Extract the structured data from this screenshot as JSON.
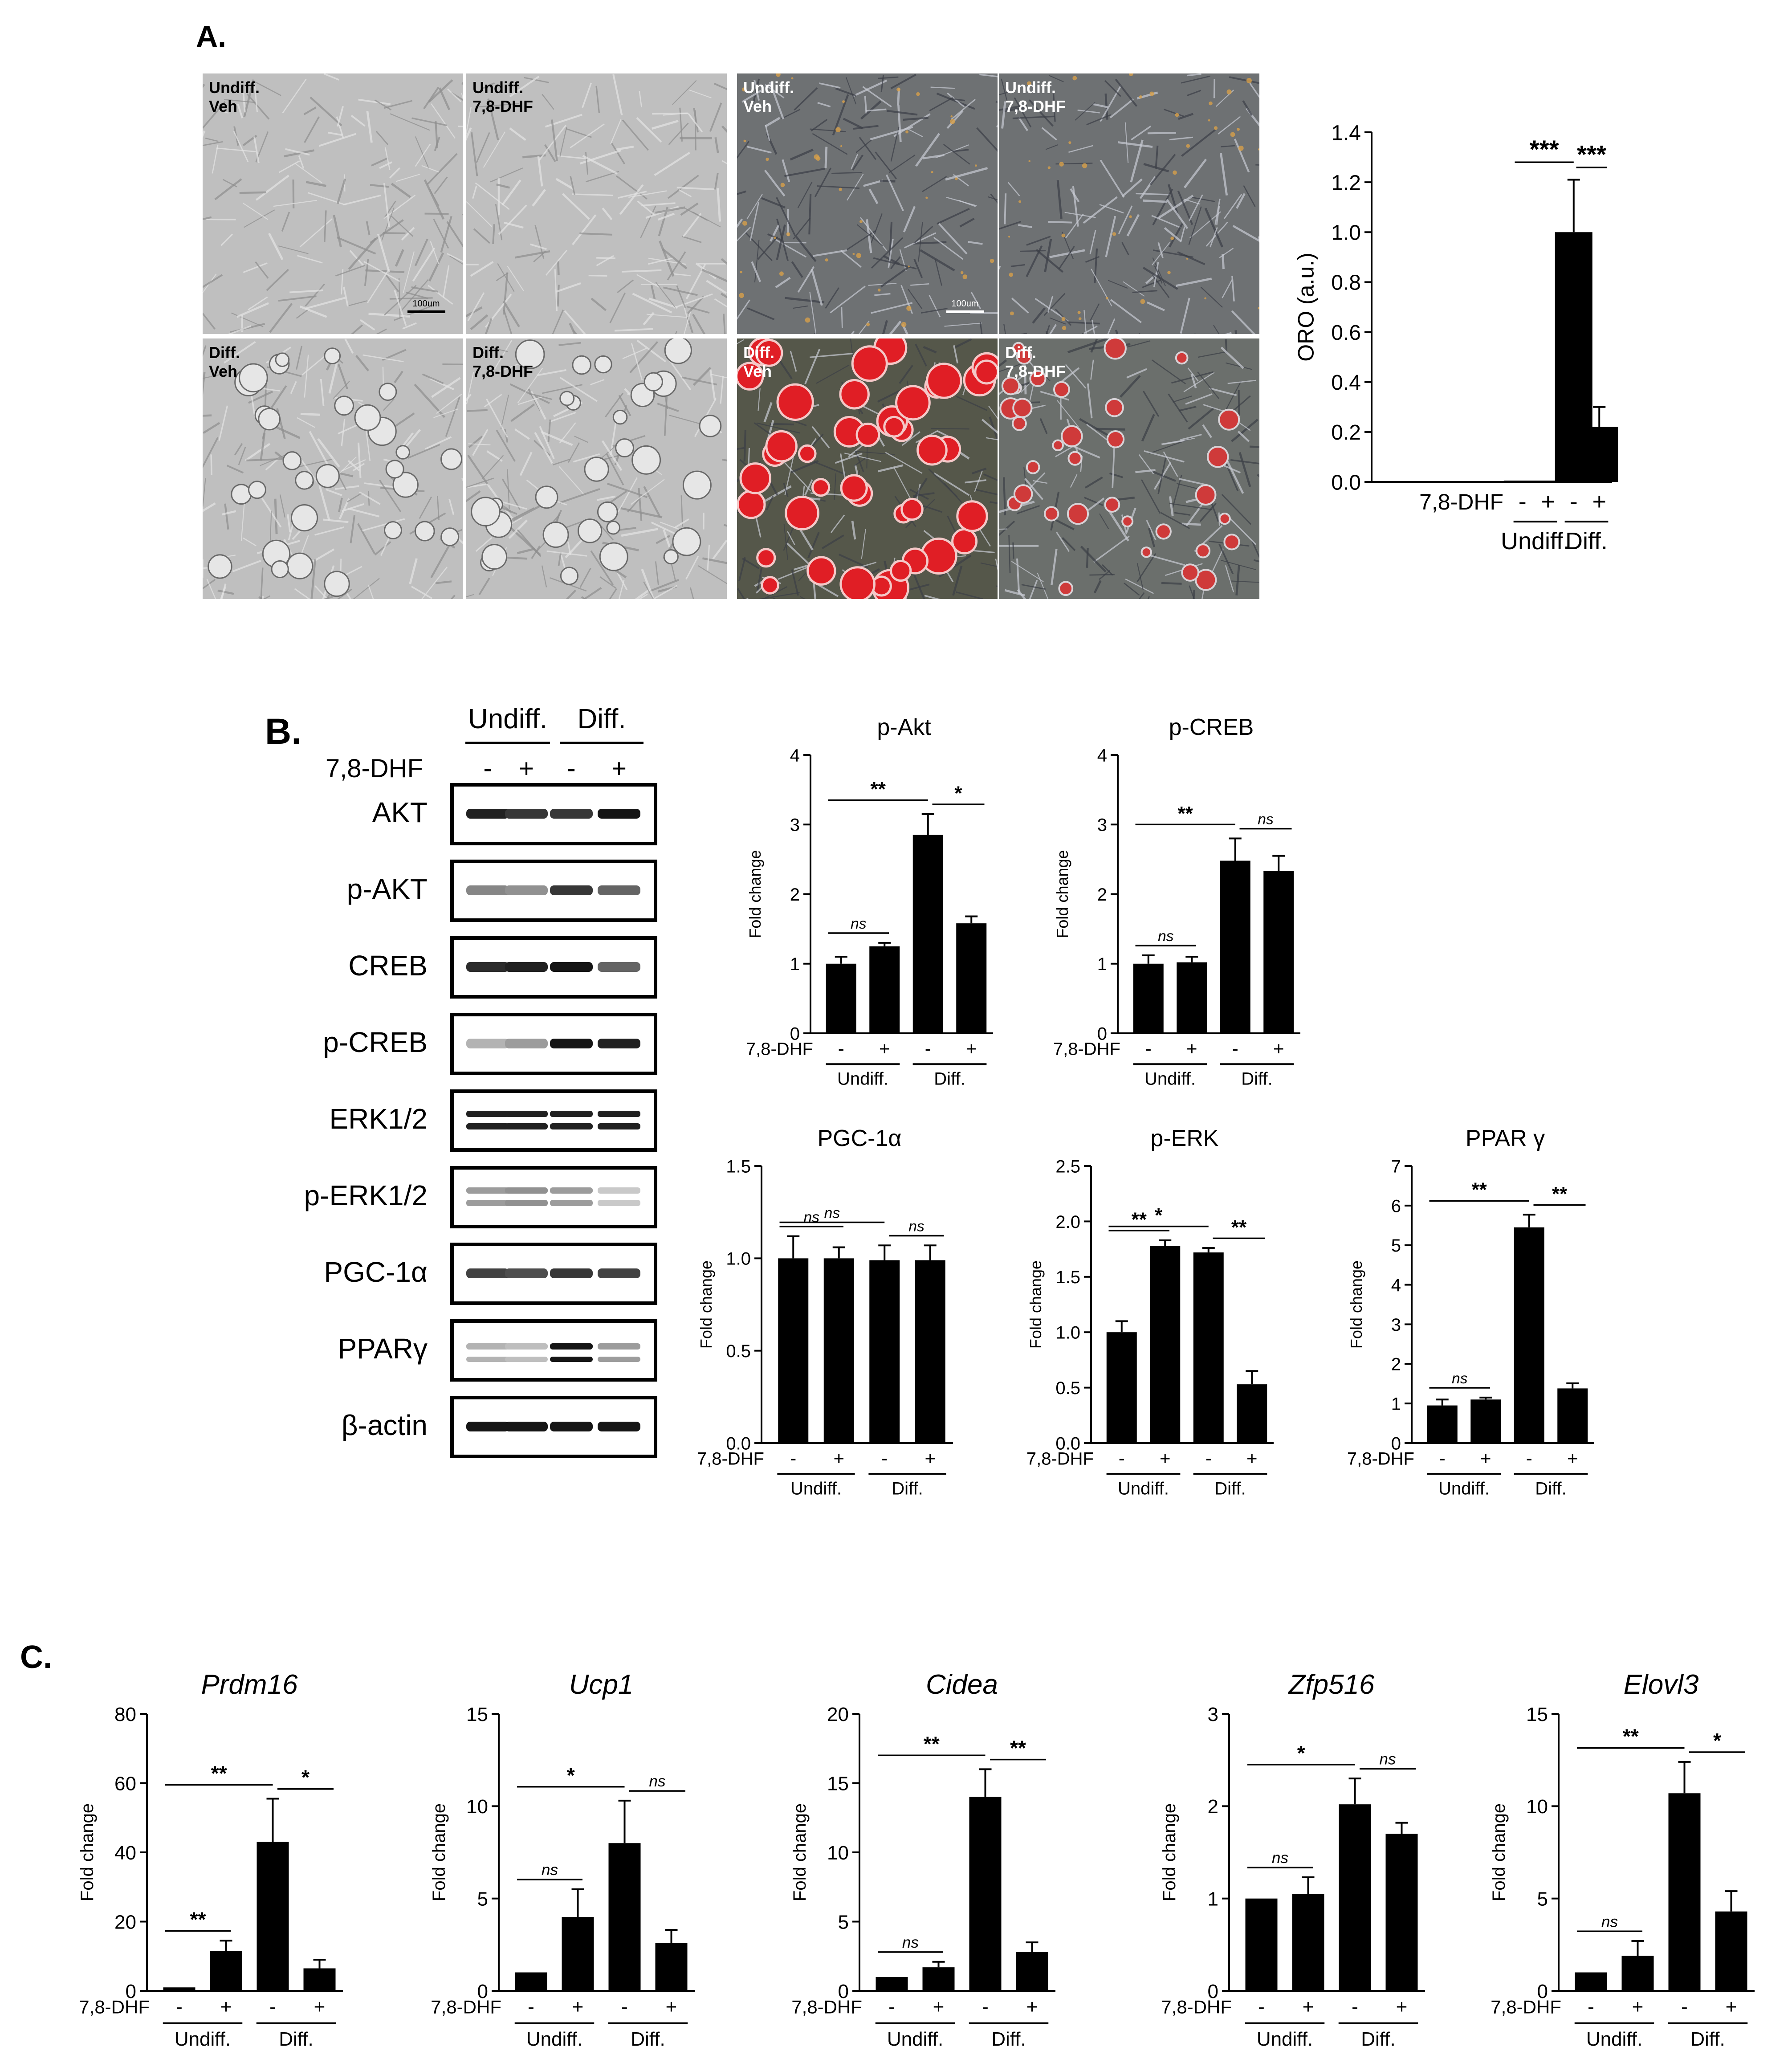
{
  "panel_letters": {
    "a": "A.",
    "b": "B.",
    "c": "C."
  },
  "tick_signs": {
    "minus": "-",
    "plus": "+"
  },
  "treatment_label": "7,8-DHF",
  "y_label": "Fold change",
  "groups": [
    "Undiff.",
    "Diff."
  ],
  "micrographs": {
    "tiles": [
      {
        "line1": "Undiff.",
        "line2": "Veh",
        "stain": "none",
        "state": "undiff"
      },
      {
        "line1": "Undiff.",
        "line2": "7,8-DHF",
        "stain": "none",
        "state": "undiff"
      },
      {
        "line1": "Undiff.",
        "line2": "Veh",
        "stain": "oro",
        "state": "undiff"
      },
      {
        "line1": "Undiff.",
        "line2": "7,8-DHF",
        "stain": "oro",
        "state": "undiff"
      },
      {
        "line1": "Diff.",
        "line2": "Veh",
        "stain": "none",
        "state": "diff"
      },
      {
        "line1": "Diff.",
        "line2": "7,8-DHF",
        "stain": "none",
        "state": "diff"
      },
      {
        "line1": "Diff.",
        "line2": "Veh",
        "stain": "oro",
        "state": "diff-veh"
      },
      {
        "line1": "Diff.",
        "line2": "7,8-DHF",
        "stain": "oro",
        "state": "diff-dhf"
      }
    ],
    "scale_bars": [
      "100um",
      "100um"
    ]
  },
  "western_blot": {
    "treatment_label": "7,8-DHF",
    "groups": [
      "Undiff.",
      "Diff."
    ],
    "lanes": [
      "-",
      "+",
      "-",
      "+"
    ],
    "rows": [
      {
        "label": "AKT",
        "pattern": "single",
        "intensity": [
          0.9,
          0.8,
          0.8,
          0.95
        ]
      },
      {
        "label": "p-AKT",
        "pattern": "single",
        "intensity": [
          0.45,
          0.4,
          0.8,
          0.6
        ]
      },
      {
        "label": "CREB",
        "pattern": "single",
        "intensity": [
          0.85,
          0.9,
          0.95,
          0.6
        ]
      },
      {
        "label": "p-CREB",
        "pattern": "single",
        "intensity": [
          0.25,
          0.35,
          0.95,
          0.9
        ]
      },
      {
        "label": "ERK1/2",
        "pattern": "double",
        "intensity": [
          0.9,
          0.9,
          0.9,
          0.9
        ]
      },
      {
        "label": "p-ERK1/2",
        "pattern": "double",
        "intensity": [
          0.35,
          0.4,
          0.35,
          0.15
        ]
      },
      {
        "label": "PGC-1α",
        "pattern": "single",
        "intensity": [
          0.75,
          0.7,
          0.8,
          0.75
        ]
      },
      {
        "label": "PPARγ",
        "pattern": "ppar",
        "intensity": [
          0.25,
          0.2,
          0.95,
          0.35
        ]
      },
      {
        "label": "β-actin",
        "pattern": "single",
        "intensity": [
          0.95,
          0.95,
          0.95,
          0.95
        ]
      }
    ]
  },
  "chart_data": [
    {
      "id": "oro",
      "type": "bar",
      "title": "",
      "ylabel": "ORO  (a.u.)",
      "categories": [
        "Undiff. -",
        "Undiff. +",
        "Diff. -",
        "Diff. +"
      ],
      "values": [
        0.0,
        0.0,
        1.0,
        0.22
      ],
      "errors": [
        0.0,
        0.0,
        0.21,
        0.08
      ],
      "ylim": [
        0,
        1.4
      ],
      "yticks": [
        "0.0",
        "0.2",
        "0.4",
        "0.6",
        "0.8",
        "1.0",
        "1.2",
        "1.4"
      ],
      "significance": [
        {
          "from": 0,
          "to": 2,
          "label": "***"
        },
        {
          "from": 2,
          "to": 3,
          "label": "***"
        }
      ]
    },
    {
      "id": "p-akt",
      "type": "bar",
      "title": "p-Akt",
      "ylabel": "Fold change",
      "categories": [
        "Undiff. -",
        "Undiff. +",
        "Diff. -",
        "Diff. +"
      ],
      "values": [
        1.0,
        1.25,
        2.85,
        1.58
      ],
      "errors": [
        0.1,
        0.05,
        0.3,
        0.1
      ],
      "ylim": [
        0,
        4
      ],
      "yticks": [
        "0",
        "1",
        "2",
        "3",
        "4"
      ],
      "significance": [
        {
          "from": 0,
          "to": 1,
          "label": "ns"
        },
        {
          "from": 0,
          "to": 2,
          "label": "**"
        },
        {
          "from": 2,
          "to": 3,
          "label": "*"
        }
      ]
    },
    {
      "id": "p-creb",
      "type": "bar",
      "title": "p-CREB",
      "ylabel": "Fold change",
      "categories": [
        "Undiff. -",
        "Undiff. +",
        "Diff. -",
        "Diff. +"
      ],
      "values": [
        1.0,
        1.02,
        2.48,
        2.33
      ],
      "errors": [
        0.12,
        0.08,
        0.32,
        0.22
      ],
      "ylim": [
        0,
        4
      ],
      "yticks": [
        "0",
        "1",
        "2",
        "3",
        "4"
      ],
      "significance": [
        {
          "from": 0,
          "to": 1,
          "label": "ns"
        },
        {
          "from": 0,
          "to": 2,
          "label": "**"
        },
        {
          "from": 2,
          "to": 3,
          "label": "ns"
        }
      ]
    },
    {
      "id": "pgc-1a",
      "type": "bar",
      "title": "PGC-1α",
      "ylabel": "Fold change",
      "categories": [
        "Undiff. -",
        "Undiff. +",
        "Diff. -",
        "Diff. +"
      ],
      "values": [
        1.0,
        1.0,
        0.99,
        0.99
      ],
      "errors": [
        0.12,
        0.06,
        0.08,
        0.08
      ],
      "ylim": [
        0,
        1.5
      ],
      "yticks": [
        "0.0",
        "0.5",
        "1.0",
        "1.5"
      ],
      "significance": [
        {
          "from": 0,
          "to": 1,
          "label": "ns"
        },
        {
          "from": 0,
          "to": 2,
          "label": "ns"
        },
        {
          "from": 2,
          "to": 3,
          "label": "ns"
        }
      ]
    },
    {
      "id": "p-erk",
      "type": "bar",
      "title": "p-ERK",
      "ylabel": "Fold change",
      "categories": [
        "Undiff. -",
        "Undiff. +",
        "Diff. -",
        "Diff. +"
      ],
      "values": [
        1.0,
        1.78,
        1.72,
        0.53
      ],
      "errors": [
        0.1,
        0.05,
        0.04,
        0.12
      ],
      "ylim": [
        0,
        2.5
      ],
      "yticks": [
        "0.0",
        "0.5",
        "1.0",
        "1.5",
        "2.0",
        "2.5"
      ],
      "significance": [
        {
          "from": 0,
          "to": 1,
          "label": "**"
        },
        {
          "from": 0,
          "to": 2,
          "label": "*"
        },
        {
          "from": 2,
          "to": 3,
          "label": "**"
        }
      ]
    },
    {
      "id": "ppar-gamma",
      "type": "bar",
      "title": "PPAR γ",
      "ylabel": "Fold change",
      "categories": [
        "Undiff. -",
        "Undiff. +",
        "Diff. -",
        "Diff. +"
      ],
      "values": [
        0.95,
        1.1,
        5.45,
        1.38
      ],
      "errors": [
        0.15,
        0.05,
        0.32,
        0.13
      ],
      "ylim": [
        0,
        7
      ],
      "yticks": [
        "0",
        "1",
        "2",
        "3",
        "4",
        "5",
        "6",
        "7"
      ],
      "significance": [
        {
          "from": 0,
          "to": 1,
          "label": "ns"
        },
        {
          "from": 0,
          "to": 2,
          "label": "**"
        },
        {
          "from": 2,
          "to": 3,
          "label": "**"
        }
      ]
    },
    {
      "id": "prdm16",
      "type": "bar",
      "title": "Prdm16",
      "ylabel": "Fold change",
      "categories": [
        "Undiff. -",
        "Undiff. +",
        "Diff. -",
        "Diff. +"
      ],
      "values": [
        1.0,
        11.5,
        43.0,
        6.5
      ],
      "errors": [
        0.0,
        3.0,
        12.5,
        2.5
      ],
      "ylim": [
        0,
        80
      ],
      "yticks": [
        "0",
        "20",
        "40",
        "60",
        "80"
      ],
      "significance": [
        {
          "from": 0,
          "to": 1,
          "label": "**"
        },
        {
          "from": 0,
          "to": 2,
          "label": "**"
        },
        {
          "from": 2,
          "to": 3,
          "label": "*"
        }
      ]
    },
    {
      "id": "ucp1",
      "type": "bar",
      "title": "Ucp1",
      "ylabel": "Fold change",
      "categories": [
        "Undiff. -",
        "Undiff. +",
        "Diff. -",
        "Diff. +"
      ],
      "values": [
        1.0,
        4.0,
        8.0,
        2.6
      ],
      "errors": [
        0.0,
        1.5,
        2.3,
        0.7
      ],
      "ylim": [
        0,
        15
      ],
      "yticks": [
        "0",
        "5",
        "10",
        "15"
      ],
      "significance": [
        {
          "from": 0,
          "to": 1,
          "label": "ns"
        },
        {
          "from": 0,
          "to": 2,
          "label": "*"
        },
        {
          "from": 2,
          "to": 3,
          "label": "ns"
        }
      ]
    },
    {
      "id": "cidea",
      "type": "bar",
      "title": "Cidea",
      "ylabel": "Fold change",
      "categories": [
        "Undiff. -",
        "Undiff. +",
        "Diff. -",
        "Diff. +"
      ],
      "values": [
        1.0,
        1.7,
        14.0,
        2.8
      ],
      "errors": [
        0.0,
        0.4,
        2.0,
        0.7
      ],
      "ylim": [
        0,
        20
      ],
      "yticks": [
        "0",
        "5",
        "10",
        "15",
        "20"
      ],
      "significance": [
        {
          "from": 0,
          "to": 1,
          "label": "ns"
        },
        {
          "from": 0,
          "to": 2,
          "label": "**"
        },
        {
          "from": 2,
          "to": 3,
          "label": "**"
        }
      ]
    },
    {
      "id": "zfp516",
      "type": "bar",
      "title": "Zfp516",
      "ylabel": "Fold change",
      "categories": [
        "Undiff. -",
        "Undiff. +",
        "Diff. -",
        "Diff. +"
      ],
      "values": [
        1.0,
        1.05,
        2.02,
        1.7
      ],
      "errors": [
        0.0,
        0.18,
        0.28,
        0.12
      ],
      "ylim": [
        0,
        3
      ],
      "yticks": [
        "0",
        "1",
        "2",
        "3"
      ],
      "significance": [
        {
          "from": 0,
          "to": 1,
          "label": "ns"
        },
        {
          "from": 0,
          "to": 2,
          "label": "*"
        },
        {
          "from": 2,
          "to": 3,
          "label": "ns"
        }
      ]
    },
    {
      "id": "elovl3",
      "type": "bar",
      "title": "Elovl3",
      "ylabel": "Fold change",
      "categories": [
        "Undiff. -",
        "Undiff. +",
        "Diff. -",
        "Diff. +"
      ],
      "values": [
        1.0,
        1.9,
        10.7,
        4.3
      ],
      "errors": [
        0.0,
        0.8,
        1.7,
        1.1
      ],
      "ylim": [
        0,
        15
      ],
      "yticks": [
        "0",
        "5",
        "10",
        "15"
      ],
      "significance": [
        {
          "from": 0,
          "to": 1,
          "label": "ns"
        },
        {
          "from": 0,
          "to": 2,
          "label": "**"
        },
        {
          "from": 2,
          "to": 3,
          "label": "*"
        }
      ]
    }
  ]
}
